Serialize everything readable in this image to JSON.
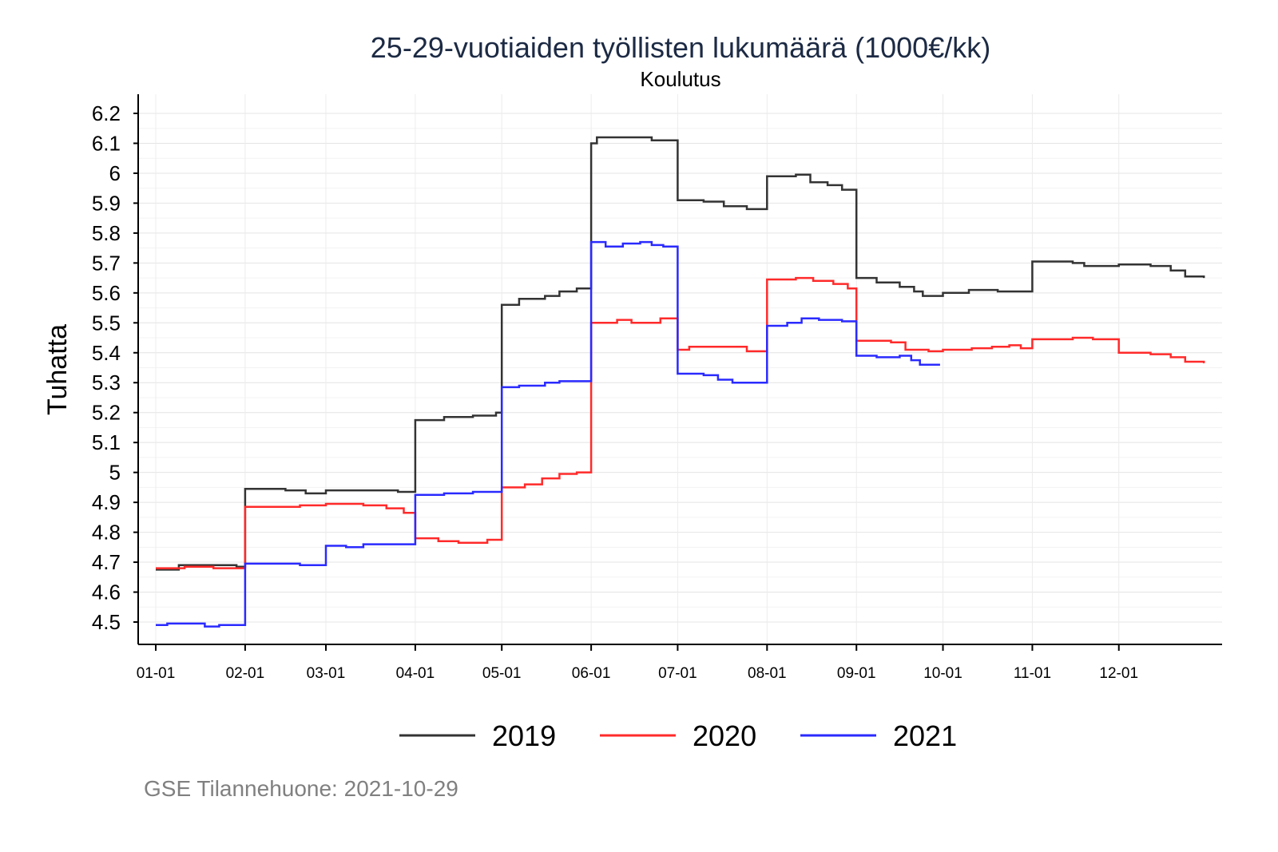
{
  "chart_data": {
    "type": "line",
    "step": true,
    "title": "25-29-vuotiaiden työllisten lukumäärä (1000€/kk)",
    "subtitle": "Koulutus",
    "ylabel": "Tuhatta",
    "xlabel": "",
    "ylim": [
      4.45,
      6.25
    ],
    "xlim_days": [
      -6,
      365
    ],
    "yticks": [
      4.5,
      4.6,
      4.7,
      4.8,
      4.9,
      5,
      5.1,
      5.2,
      5.3,
      5.4,
      5.5,
      5.6,
      5.7,
      5.8,
      5.9,
      6,
      6.1,
      6.2
    ],
    "ytick_labels": [
      "4.5",
      "4.6",
      "4.7",
      "4.8",
      "4.9",
      "5",
      "5.1",
      "5.2",
      "5.3",
      "5.4",
      "5.5",
      "5.6",
      "5.7",
      "5.8",
      "5.9",
      "6",
      "6.1",
      "6.2"
    ],
    "xticks_days": [
      0,
      31,
      59,
      90,
      120,
      151,
      181,
      212,
      243,
      273,
      304,
      334
    ],
    "xtick_labels": [
      "01-01",
      "02-01",
      "03-01",
      "04-01",
      "05-01",
      "06-01",
      "07-01",
      "08-01",
      "09-01",
      "10-01",
      "11-01",
      "12-01"
    ],
    "grid": true,
    "legend_position": "bottom",
    "series": [
      {
        "name": "2019",
        "color": "#333333",
        "points": [
          [
            0,
            4.675
          ],
          [
            8,
            4.69
          ],
          [
            20,
            4.69
          ],
          [
            28,
            4.685
          ],
          [
            31,
            4.945
          ],
          [
            45,
            4.94
          ],
          [
            52,
            4.93
          ],
          [
            59,
            4.94
          ],
          [
            75,
            4.94
          ],
          [
            84,
            4.935
          ],
          [
            90,
            5.175
          ],
          [
            100,
            5.185
          ],
          [
            110,
            5.19
          ],
          [
            118,
            5.2
          ],
          [
            120,
            5.56
          ],
          [
            126,
            5.58
          ],
          [
            135,
            5.59
          ],
          [
            140,
            5.605
          ],
          [
            146,
            5.615
          ],
          [
            151,
            6.1
          ],
          [
            153,
            6.12
          ],
          [
            165,
            6.12
          ],
          [
            172,
            6.11
          ],
          [
            181,
            5.91
          ],
          [
            190,
            5.905
          ],
          [
            197,
            5.89
          ],
          [
            205,
            5.88
          ],
          [
            212,
            5.99
          ],
          [
            222,
            5.995
          ],
          [
            227,
            5.97
          ],
          [
            233,
            5.96
          ],
          [
            238,
            5.945
          ],
          [
            243,
            5.65
          ],
          [
            250,
            5.635
          ],
          [
            258,
            5.62
          ],
          [
            263,
            5.605
          ],
          [
            266,
            5.59
          ],
          [
            273,
            5.6
          ],
          [
            282,
            5.61
          ],
          [
            292,
            5.605
          ],
          [
            304,
            5.705
          ],
          [
            318,
            5.7
          ],
          [
            322,
            5.69
          ],
          [
            334,
            5.695
          ],
          [
            345,
            5.69
          ],
          [
            352,
            5.675
          ],
          [
            357,
            5.655
          ],
          [
            363.5,
            5.65
          ]
        ]
      },
      {
        "name": "2020",
        "color": "#ff2a2a",
        "points": [
          [
            0,
            4.68
          ],
          [
            10,
            4.685
          ],
          [
            20,
            4.68
          ],
          [
            31,
            4.885
          ],
          [
            40,
            4.885
          ],
          [
            50,
            4.89
          ],
          [
            59,
            4.895
          ],
          [
            72,
            4.89
          ],
          [
            80,
            4.88
          ],
          [
            86,
            4.865
          ],
          [
            90,
            4.78
          ],
          [
            98,
            4.77
          ],
          [
            105,
            4.765
          ],
          [
            115,
            4.775
          ],
          [
            120,
            4.95
          ],
          [
            128,
            4.96
          ],
          [
            134,
            4.98
          ],
          [
            140,
            4.995
          ],
          [
            146,
            5.0
          ],
          [
            151,
            5.5
          ],
          [
            160,
            5.51
          ],
          [
            165,
            5.5
          ],
          [
            175,
            5.515
          ],
          [
            181,
            5.41
          ],
          [
            185,
            5.42
          ],
          [
            197,
            5.42
          ],
          [
            205,
            5.405
          ],
          [
            212,
            5.645
          ],
          [
            222,
            5.65
          ],
          [
            228,
            5.64
          ],
          [
            235,
            5.63
          ],
          [
            240,
            5.615
          ],
          [
            243,
            5.44
          ],
          [
            255,
            5.435
          ],
          [
            260,
            5.41
          ],
          [
            268,
            5.405
          ],
          [
            273,
            5.41
          ],
          [
            283,
            5.415
          ],
          [
            290,
            5.42
          ],
          [
            296,
            5.425
          ],
          [
            300,
            5.415
          ],
          [
            304,
            5.445
          ],
          [
            318,
            5.45
          ],
          [
            325,
            5.445
          ],
          [
            334,
            5.4
          ],
          [
            345,
            5.395
          ],
          [
            352,
            5.385
          ],
          [
            357,
            5.37
          ],
          [
            363.5,
            5.365
          ]
        ]
      },
      {
        "name": "2021",
        "color": "#2a2aff",
        "points": [
          [
            0,
            4.49
          ],
          [
            4,
            4.495
          ],
          [
            15,
            4.495
          ],
          [
            17,
            4.485
          ],
          [
            22,
            4.49
          ],
          [
            31,
            4.695
          ],
          [
            50,
            4.69
          ],
          [
            59,
            4.755
          ],
          [
            66,
            4.75
          ],
          [
            72,
            4.76
          ],
          [
            90,
            4.925
          ],
          [
            100,
            4.93
          ],
          [
            110,
            4.935
          ],
          [
            120,
            5.285
          ],
          [
            126,
            5.29
          ],
          [
            135,
            5.3
          ],
          [
            140,
            5.305
          ],
          [
            151,
            5.77
          ],
          [
            156,
            5.755
          ],
          [
            162,
            5.765
          ],
          [
            168,
            5.77
          ],
          [
            172,
            5.76
          ],
          [
            176,
            5.755
          ],
          [
            181,
            5.33
          ],
          [
            190,
            5.325
          ],
          [
            195,
            5.31
          ],
          [
            200,
            5.3
          ],
          [
            212,
            5.49
          ],
          [
            219,
            5.5
          ],
          [
            224,
            5.515
          ],
          [
            230,
            5.51
          ],
          [
            238,
            5.505
          ],
          [
            243,
            5.39
          ],
          [
            250,
            5.385
          ],
          [
            258,
            5.39
          ],
          [
            262,
            5.375
          ],
          [
            265,
            5.36
          ],
          [
            272,
            5.36
          ]
        ]
      }
    ]
  },
  "caption": "GSE Tilannehuone: 2021-10-29"
}
